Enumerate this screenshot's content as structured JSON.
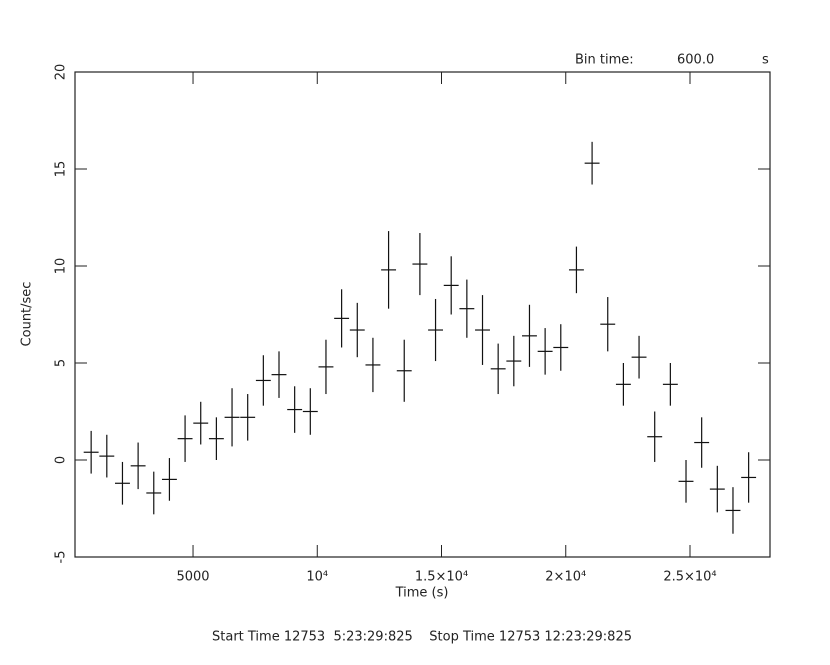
{
  "chart_data": {
    "type": "errorbar",
    "bin_time_label": "Bin time:",
    "bin_time": "600.0",
    "bin_time_unit": "s",
    "x_label": "Time (s)",
    "y_label": "Count/sec",
    "footer": "Start Time 12753  5:23:29:825    Stop Time 12753 12:23:29:825",
    "x": [
      900,
      1530,
      2160,
      2790,
      3420,
      4050,
      4680,
      5310,
      5940,
      6570,
      7200,
      7830,
      8460,
      9090,
      9720,
      10350,
      10980,
      11610,
      12240,
      12870,
      13500,
      14130,
      14760,
      15390,
      16020,
      16650,
      17280,
      17910,
      18540,
      19170,
      19800,
      20430,
      21060,
      21690,
      22320,
      22950,
      23580,
      24210,
      24840,
      25470,
      26100,
      26730,
      27360
    ],
    "x_err": 300,
    "values": [
      0.4,
      0.2,
      -1.2,
      -0.3,
      -1.7,
      -1.0,
      1.1,
      1.9,
      1.1,
      2.2,
      2.2,
      4.1,
      4.4,
      2.6,
      2.5,
      4.8,
      7.3,
      6.7,
      4.9,
      9.8,
      4.6,
      10.1,
      6.7,
      9.0,
      7.8,
      6.7,
      4.7,
      5.1,
      6.4,
      5.6,
      5.8,
      9.8,
      15.3,
      7.0,
      3.9,
      5.3,
      1.2,
      3.9,
      -1.1,
      0.9,
      -1.5,
      -2.6,
      -0.9
    ],
    "errors": [
      1.1,
      1.1,
      1.1,
      1.2,
      1.1,
      1.1,
      1.2,
      1.1,
      1.1,
      1.5,
      1.2,
      1.3,
      1.2,
      1.2,
      1.2,
      1.4,
      1.5,
      1.4,
      1.4,
      2.0,
      1.6,
      1.6,
      1.6,
      1.5,
      1.5,
      1.8,
      1.3,
      1.3,
      1.6,
      1.2,
      1.2,
      1.2,
      1.1,
      1.4,
      1.1,
      1.1,
      1.3,
      1.1,
      1.1,
      1.3,
      1.2,
      1.2,
      1.3
    ],
    "color": "#111111",
    "xlim": [
      250,
      28220
    ],
    "xticks": [
      5000,
      {
        "value": 10000,
        "label": "10⁴"
      },
      {
        "value": 15000,
        "label": "1.5×10⁴"
      },
      {
        "value": 20000,
        "label": "2×10⁴"
      },
      {
        "value": 25000,
        "label": "2.5×10⁴"
      }
    ],
    "ylim": [
      -5,
      20
    ],
    "yticks": [
      -5,
      0,
      5,
      10,
      15,
      20
    ]
  }
}
